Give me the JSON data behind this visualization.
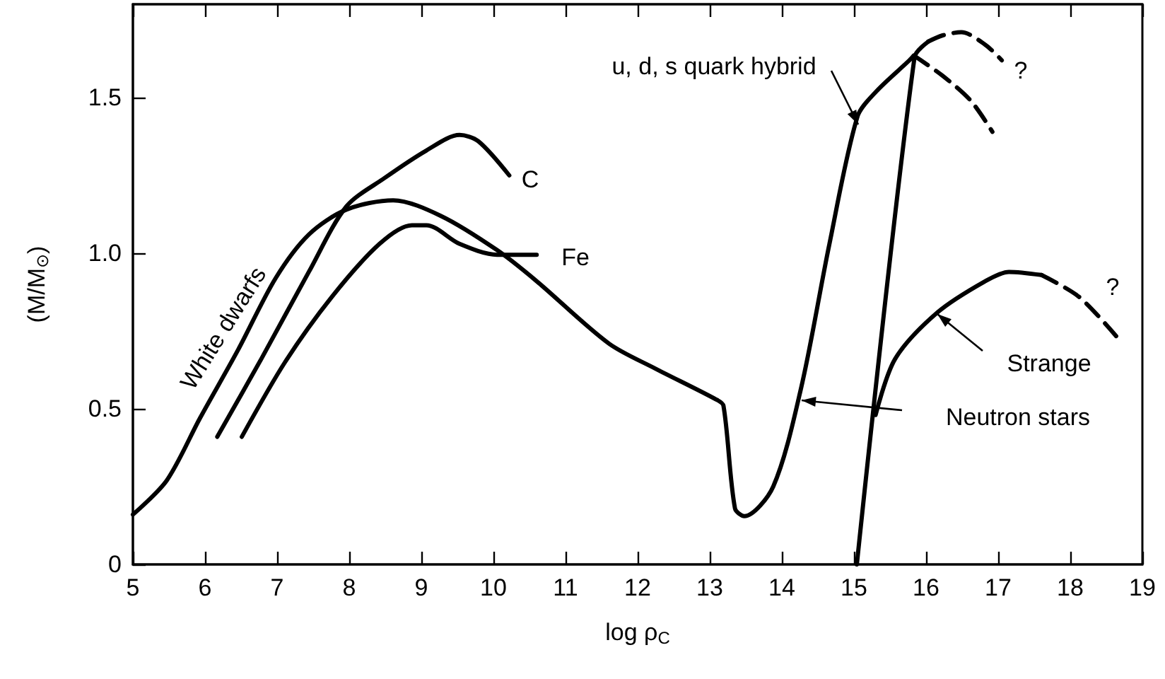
{
  "chart_data": {
    "type": "line",
    "xlabel": "log ρ$_{C}$",
    "ylabel": "(M/M$_{⊙}$)",
    "xlim": [
      5,
      19
    ],
    "xticks": [
      5,
      6,
      7,
      8,
      9,
      10,
      11,
      12,
      13,
      14,
      15,
      16,
      17,
      18,
      19
    ],
    "ylim": [
      0,
      1.8
    ],
    "yticks": [
      0,
      0.5,
      {
        "value": 1,
        "label": "1.0"
      },
      {
        "value": 1.5,
        "label": "1.5"
      }
    ],
    "grid": false,
    "marker": "none",
    "series": [
      {
        "color": "#000000",
        "line_style": "solid",
        "x": [
          5.0,
          5.47,
          5.93,
          6.46,
          6.98,
          7.44,
          7.96,
          8.61,
          9.27,
          10.05,
          10.6,
          11.6,
          12.24,
          13.09,
          13.19,
          13.35,
          13.48,
          13.88,
          14.27,
          14.66,
          15.05,
          15.31,
          15.77,
          15.83
        ],
        "values": [
          0.16,
          0.27,
          0.47,
          0.69,
          0.92,
          1.06,
          1.14,
          1.17,
          1.12,
          1.01,
          0.91,
          0.71,
          0.63,
          0.53,
          0.51,
          0.18,
          0.155,
          0.25,
          0.57,
          1.03,
          1.44,
          1.52,
          1.62,
          1.635
        ]
      },
      {
        "color": "#000000",
        "line_style": "dashed",
        "x": [
          15.83,
          16.23,
          16.62,
          16.92
        ],
        "values": [
          1.635,
          1.57,
          1.49,
          1.39
        ]
      },
      {
        "color": "#000000",
        "line_style": "solid",
        "x": [
          15.04,
          15.84,
          16.03
        ],
        "values": [
          0,
          1.63,
          1.68
        ]
      },
      {
        "color": "#000000",
        "line_style": "dashed",
        "x": [
          16.03,
          16.23,
          16.49,
          16.82,
          17.05
        ],
        "values": [
          1.68,
          1.7,
          1.71,
          1.67,
          1.62
        ]
      },
      {
        "color": "#000000",
        "line_style": "solid",
        "x": [
          6.17,
          6.78,
          7.44,
          7.96,
          8.48,
          9.07,
          9.53,
          9.79,
          10.22
        ],
        "values": [
          0.41,
          0.66,
          0.94,
          1.15,
          1.24,
          1.33,
          1.38,
          1.36,
          1.25
        ]
      },
      {
        "color": "#000000",
        "line_style": "solid",
        "x": [
          6.51,
          7.11,
          7.76,
          8.42,
          8.87,
          9.07,
          9.53,
          10.05,
          10.6
        ],
        "values": [
          0.41,
          0.65,
          0.86,
          1.03,
          1.09,
          1.09,
          1.03,
          0.995,
          0.995
        ]
      },
      {
        "color": "#000000",
        "line_style": "solid",
        "x": [
          15.3,
          15.57,
          16.16,
          16.82,
          17.15,
          17.6
        ],
        "values": [
          0.48,
          0.66,
          0.81,
          0.91,
          0.94,
          0.93
        ]
      },
      {
        "color": "#000000",
        "line_style": "dashed",
        "x": [
          17.6,
          18.12,
          18.65
        ],
        "values": [
          0.93,
          0.86,
          0.73
        ]
      }
    ],
    "annotations": [
      "White dwarfs",
      "C",
      "Fe",
      "u, d, s quark hybrid",
      "Neutron stars",
      "Strange",
      "?",
      "?"
    ]
  }
}
